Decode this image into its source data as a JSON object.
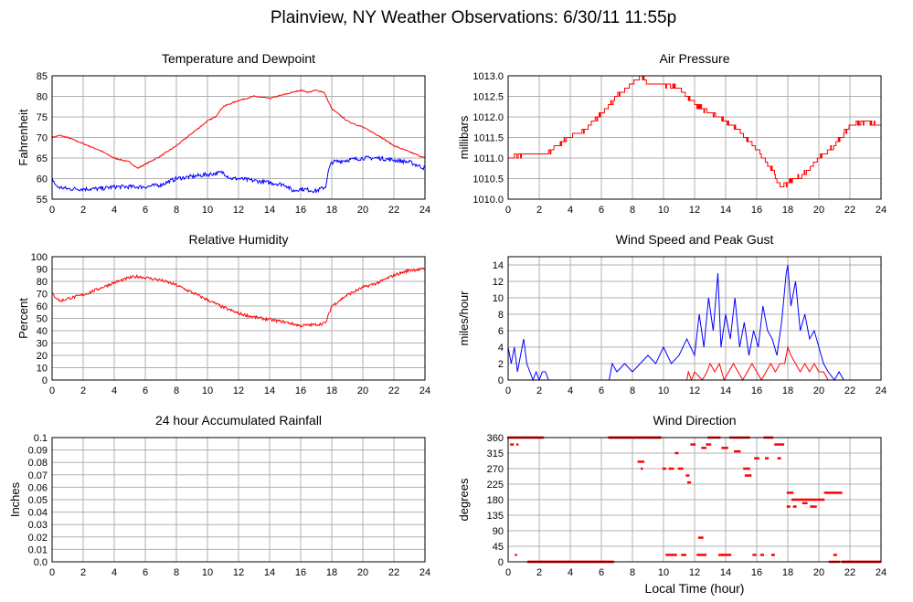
{
  "page": {
    "title": "Plainview, NY Weather Observations: 6/30/11 11:55p",
    "xlabel": "Local Time (hour)"
  },
  "colors": {
    "red": "#ff0000",
    "blue": "#0000ff",
    "grid": "#b0b0b0",
    "frame": "#000000"
  },
  "chart_data": [
    {
      "id": "temp",
      "type": "line",
      "title": "Temperature and Dewpoint",
      "ylabel": "Fahrenheit",
      "xlim": [
        0,
        24
      ],
      "ylim": [
        55,
        85
      ],
      "yticks": [
        55,
        60,
        65,
        70,
        75,
        80,
        85
      ],
      "xticks": [
        0,
        2,
        4,
        6,
        8,
        10,
        12,
        14,
        16,
        18,
        20,
        22,
        24
      ],
      "grid": true,
      "series": [
        {
          "color": "red",
          "noise": 0.15,
          "x": [
            0,
            0.5,
            1,
            2,
            3,
            4,
            5,
            5.5,
            6,
            7,
            8,
            9,
            10,
            10.5,
            11,
            12,
            13,
            14,
            15,
            15.5,
            16,
            16.5,
            17,
            17.5,
            18,
            19,
            20,
            21,
            22,
            23,
            24
          ],
          "y": [
            70,
            70.5,
            70,
            68.5,
            67,
            65,
            64,
            62.5,
            63.5,
            65.5,
            68,
            71,
            74,
            75,
            77.5,
            79,
            80,
            79.5,
            80.5,
            81,
            81.5,
            81,
            81.5,
            81,
            77,
            74,
            72.5,
            70.5,
            68,
            66.5,
            65
          ]
        },
        {
          "color": "blue",
          "noise": 0.5,
          "x": [
            0,
            0.3,
            1,
            2,
            3,
            4,
            5,
            6,
            7,
            8,
            9,
            10,
            11,
            11.5,
            12,
            13,
            14,
            15,
            15.5,
            16,
            17,
            17.6,
            17.8,
            18,
            19,
            20,
            21,
            22,
            23,
            24
          ],
          "y": [
            60,
            58,
            57.5,
            57.5,
            57.5,
            58,
            58,
            58,
            58.5,
            60,
            60.5,
            61,
            61.5,
            60,
            60,
            59.5,
            59,
            58.5,
            57,
            57.5,
            57,
            58,
            62,
            64,
            64.5,
            65,
            65,
            64.5,
            64,
            62.5
          ]
        }
      ]
    },
    {
      "id": "pressure",
      "type": "line",
      "title": "Air Pressure",
      "ylabel": "millibars",
      "xlim": [
        0,
        24
      ],
      "ylim": [
        1010.0,
        1013.0
      ],
      "yticks": [
        1010.0,
        1010.5,
        1011.0,
        1011.5,
        1012.0,
        1012.5,
        1013.0
      ],
      "xticks": [
        0,
        2,
        4,
        6,
        8,
        10,
        12,
        14,
        16,
        18,
        20,
        22,
        24
      ],
      "grid": true,
      "series": [
        {
          "color": "red",
          "step": 0.1,
          "noise": 0.04,
          "x": [
            0,
            1,
            2,
            2.5,
            3,
            4,
            5,
            6,
            7,
            8,
            8.5,
            9,
            10,
            11,
            11.5,
            12,
            13,
            14,
            15,
            16,
            17,
            17.5,
            18,
            19,
            20,
            21,
            22,
            23,
            24
          ],
          "y": [
            1011.0,
            1011.1,
            1011.1,
            1011.1,
            1011.3,
            1011.5,
            1011.7,
            1012.1,
            1012.5,
            1012.8,
            1013.0,
            1012.8,
            1012.8,
            1012.7,
            1012.5,
            1012.3,
            1012.1,
            1011.9,
            1011.6,
            1011.2,
            1010.7,
            1010.3,
            1010.4,
            1010.6,
            1011.0,
            1011.3,
            1011.8,
            1011.9,
            1011.8
          ]
        }
      ]
    },
    {
      "id": "rh",
      "type": "line",
      "title": "Relative Humidity",
      "ylabel": "Percent",
      "xlim": [
        0,
        24
      ],
      "ylim": [
        0,
        100
      ],
      "yticks": [
        0,
        10,
        20,
        30,
        40,
        50,
        60,
        70,
        80,
        90,
        100
      ],
      "xticks": [
        0,
        2,
        4,
        6,
        8,
        10,
        12,
        14,
        16,
        18,
        20,
        22,
        24
      ],
      "grid": true,
      "series": [
        {
          "color": "red",
          "noise": 1.2,
          "x": [
            0,
            0.5,
            1,
            2,
            3,
            4,
            5,
            5.5,
            6,
            7,
            8,
            9,
            10,
            11,
            12,
            13,
            14,
            15,
            16,
            17,
            17.6,
            18,
            19,
            20,
            21,
            22,
            23,
            24
          ],
          "y": [
            70,
            64,
            66,
            69,
            74,
            79,
            83,
            84,
            83,
            81,
            77,
            71,
            65,
            59,
            54,
            51,
            49,
            47,
            44,
            45,
            46,
            60,
            69,
            75,
            79,
            85,
            89,
            90
          ]
        }
      ]
    },
    {
      "id": "wind",
      "type": "line",
      "title": "Wind Speed and Peak Gust",
      "ylabel": "miles/hour",
      "xlim": [
        0,
        24
      ],
      "ylim": [
        0,
        15
      ],
      "yticks": [
        0,
        2,
        4,
        6,
        8,
        10,
        12,
        14
      ],
      "xticks": [
        0,
        2,
        4,
        6,
        8,
        10,
        12,
        14,
        16,
        18,
        20,
        22,
        24
      ],
      "grid": true,
      "series": [
        {
          "color": "blue",
          "kind": "wind",
          "x": [
            0,
            0.2,
            0.4,
            0.6,
            0.8,
            1.0,
            1.2,
            1.4,
            1.6,
            1.8,
            2.0,
            2.2,
            2.4,
            2.6,
            6.5,
            6.7,
            7.0,
            7.5,
            8.0,
            8.5,
            9.0,
            9.5,
            10.0,
            10.5,
            11.0,
            11.5,
            12.0,
            12.3,
            12.6,
            12.9,
            13.2,
            13.5,
            13.7,
            14.0,
            14.3,
            14.6,
            14.9,
            15.2,
            15.5,
            15.8,
            16.1,
            16.4,
            16.7,
            17.0,
            17.3,
            17.6,
            17.9,
            18.0,
            18.2,
            18.5,
            18.8,
            19.1,
            19.4,
            19.7,
            20.0,
            20.3,
            20.6,
            21.0,
            21.3,
            21.6,
            21.8,
            24.0
          ],
          "y": [
            4,
            2,
            4,
            1,
            3,
            5,
            2,
            1,
            0,
            1,
            0,
            1,
            1,
            0,
            0,
            2,
            1,
            2,
            1,
            2,
            3,
            2,
            4,
            2,
            3,
            5,
            3,
            8,
            4,
            10,
            6,
            13,
            4,
            8,
            5,
            10,
            4,
            7,
            3,
            6,
            4,
            9,
            6,
            5,
            3,
            7,
            13,
            14,
            9,
            12,
            6,
            8,
            5,
            6,
            4,
            2,
            1,
            0,
            1,
            0,
            0,
            0
          ]
        },
        {
          "color": "red",
          "kind": "gust",
          "x": [
            0,
            11.5,
            11.6,
            11.8,
            12.0,
            12.5,
            12.8,
            13.0,
            13.3,
            13.6,
            13.9,
            14.2,
            14.5,
            14.8,
            15.1,
            15.4,
            15.7,
            16.0,
            16.3,
            16.6,
            16.9,
            17.2,
            17.5,
            17.8,
            18.0,
            18.2,
            18.5,
            18.8,
            19.1,
            19.4,
            19.7,
            20.0,
            20.3,
            20.6,
            24.0
          ],
          "y": [
            0,
            0,
            1,
            0,
            1,
            0,
            1,
            2,
            1,
            2,
            0,
            1,
            2,
            1,
            0,
            1,
            2,
            1,
            0,
            1,
            2,
            1,
            2,
            2,
            4,
            3,
            2,
            1,
            2,
            1,
            2,
            1,
            1,
            0,
            0
          ]
        }
      ]
    },
    {
      "id": "rain",
      "type": "line",
      "title": "24 hour Accumulated Rainfall",
      "ylabel": "Inches",
      "xlim": [
        0,
        24
      ],
      "ylim": [
        0,
        0.1
      ],
      "yticks": [
        0.0,
        0.01,
        0.02,
        0.03,
        0.04,
        0.05,
        0.06,
        0.07,
        0.08,
        0.09,
        0.1
      ],
      "ytick_labels": [
        "0.0",
        "0.01",
        "0.02",
        "0.03",
        "0.04",
        "0.05",
        "0.06",
        "0.07",
        "0.08",
        "0.09",
        "0.1"
      ],
      "xticks": [
        0,
        2,
        4,
        6,
        8,
        10,
        12,
        14,
        16,
        18,
        20,
        22,
        24
      ],
      "grid": true,
      "series": [
        {
          "color": "red",
          "x": [
            0,
            24
          ],
          "y": [
            0,
            0
          ]
        }
      ]
    },
    {
      "id": "wdir",
      "type": "scatter",
      "title": "Wind Direction",
      "ylabel": "degrees",
      "xlim": [
        0,
        24
      ],
      "ylim": [
        0,
        360
      ],
      "yticks": [
        0,
        45,
        90,
        135,
        180,
        225,
        270,
        315,
        360
      ],
      "xticks": [
        0,
        2,
        4,
        6,
        8,
        10,
        12,
        14,
        16,
        18,
        20,
        22,
        24
      ],
      "grid": true,
      "series": [
        {
          "color": "red",
          "runs": [
            [
              0,
              2.3,
              360,
              0.08
            ],
            [
              0.2,
              0.3,
              340,
              0.1
            ],
            [
              0.6,
              0.6,
              340,
              0.1
            ],
            [
              0.5,
              0.5,
              20,
              0.1
            ],
            [
              1.3,
              6.8,
              0,
              0.06
            ],
            [
              6.5,
              9.8,
              360,
              0.06
            ],
            [
              8.4,
              8.7,
              290,
              0.1
            ],
            [
              8.6,
              8.6,
              270,
              0.1
            ],
            [
              10.0,
              10.1,
              270,
              0.1
            ],
            [
              10.2,
              10.8,
              20,
              0.1
            ],
            [
              10.4,
              10.6,
              270,
              0.1
            ],
            [
              10.8,
              10.9,
              315,
              0.1
            ],
            [
              11.0,
              11.2,
              270,
              0.1
            ],
            [
              11.2,
              11.4,
              20,
              0.1
            ],
            [
              11.5,
              11.6,
              250,
              0.1
            ],
            [
              11.6,
              11.7,
              230,
              0.1
            ],
            [
              11.8,
              12.0,
              340,
              0.1
            ],
            [
              12.2,
              12.7,
              20,
              0.1
            ],
            [
              12.3,
              12.5,
              70,
              0.1
            ],
            [
              12.5,
              12.7,
              330,
              0.1
            ],
            [
              12.8,
              13.0,
              340,
              0.1
            ],
            [
              12.9,
              13.6,
              360,
              0.1
            ],
            [
              13.6,
              14.3,
              20,
              0.1
            ],
            [
              13.8,
              14.1,
              330,
              0.1
            ],
            [
              14.3,
              15.5,
              360,
              0.1
            ],
            [
              14.6,
              14.9,
              320,
              0.1
            ],
            [
              15.2,
              15.5,
              270,
              0.1
            ],
            [
              15.3,
              15.6,
              250,
              0.1
            ],
            [
              15.8,
              15.9,
              20,
              0.1
            ],
            [
              15.9,
              16.1,
              300,
              0.1
            ],
            [
              16.3,
              16.4,
              20,
              0.1
            ],
            [
              16.5,
              17.0,
              360,
              0.1
            ],
            [
              16.6,
              16.7,
              300,
              0.1
            ],
            [
              17.0,
              17.1,
              20,
              0.1
            ],
            [
              17.2,
              17.7,
              340,
              0.1
            ],
            [
              17.4,
              17.5,
              300,
              0.1
            ],
            [
              18.0,
              18.3,
              200,
              0.1
            ],
            [
              18.0,
              18.1,
              160,
              0.1
            ],
            [
              18.3,
              20.3,
              180,
              0.08
            ],
            [
              18.4,
              18.5,
              160,
              0.1
            ],
            [
              19.0,
              19.2,
              170,
              0.1
            ],
            [
              19.5,
              19.8,
              160,
              0.1
            ],
            [
              20.4,
              21.5,
              200,
              0.08
            ],
            [
              20.7,
              21.3,
              0,
              0.1
            ],
            [
              21.0,
              21.1,
              20,
              0.1
            ],
            [
              21.5,
              24.0,
              0,
              0.06
            ]
          ]
        }
      ]
    }
  ]
}
